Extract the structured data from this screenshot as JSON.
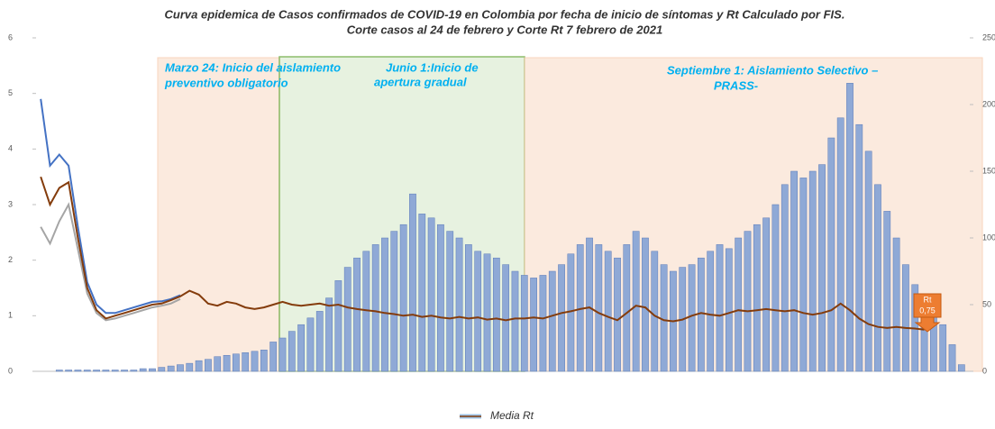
{
  "chart_data": {
    "type": "combo",
    "title": [
      "Curva epidemica de Casos confirmados de COVID-19 en Colombia por fecha de inicio de síntomas y Rt Calculado por FIS.",
      "Corte casos al 24 de febrero  y Corte Rt 7 febrero de 2021"
    ],
    "categories": [
      null,
      null,
      null,
      null,
      null,
      null,
      null,
      null,
      null,
      null,
      null,
      null,
      null,
      null,
      null,
      null,
      null,
      null,
      null,
      null,
      null,
      null,
      null,
      null,
      null,
      null,
      null,
      null,
      null,
      null,
      null,
      null,
      null,
      null,
      null,
      null,
      null,
      null,
      null,
      null,
      null,
      null,
      null,
      null,
      null,
      null,
      null,
      null,
      null,
      null,
      null,
      null,
      null,
      null,
      null,
      null,
      null,
      null,
      null,
      null,
      null,
      null,
      null,
      null,
      null,
      null,
      null,
      null,
      null,
      null,
      null,
      null,
      null,
      null,
      null,
      null,
      null,
      null,
      null,
      null,
      null,
      null,
      null,
      null,
      null,
      null,
      null,
      null,
      null,
      null,
      null,
      null,
      null,
      null,
      null,
      null,
      null,
      null,
      null,
      null
    ],
    "series": [
      {
        "type": "bar",
        "axis": "y2",
        "color": "#8fa9d6",
        "values": [
          0,
          0,
          1,
          1,
          1,
          1,
          1,
          1,
          1,
          1,
          1,
          2,
          2,
          3,
          4,
          5,
          6,
          8,
          9,
          11,
          12,
          13,
          14,
          15,
          16,
          22,
          25,
          30,
          35,
          40,
          45,
          55,
          68,
          78,
          85,
          90,
          95,
          100,
          105,
          110,
          133,
          118,
          115,
          110,
          105,
          100,
          95,
          90,
          88,
          85,
          80,
          75,
          72,
          70,
          72,
          75,
          80,
          88,
          95,
          100,
          95,
          90,
          85,
          95,
          105,
          100,
          90,
          80,
          75,
          78,
          80,
          85,
          90,
          95,
          92,
          100,
          105,
          110,
          115,
          125,
          140,
          150,
          145,
          150,
          155,
          175,
          190,
          216,
          185,
          165,
          140,
          120,
          100,
          80,
          65,
          55,
          45,
          35,
          20,
          5
        ]
      },
      {
        "type": "line",
        "color": "#4472c4",
        "values": [
          4.9,
          3.7,
          3.9,
          3.7,
          2.6,
          1.6,
          1.2,
          1.05,
          1.05,
          1.1,
          1.15,
          1.2,
          1.25,
          1.26,
          1.3,
          1.37,
          null,
          null,
          null,
          null,
          null,
          null,
          null,
          null,
          null,
          null,
          null,
          null,
          null,
          null,
          null,
          null,
          null,
          null,
          null,
          null,
          null,
          null,
          null,
          null,
          null,
          null,
          null,
          null,
          null,
          null,
          null,
          null,
          null,
          null,
          null,
          null,
          null,
          null,
          null,
          null,
          null,
          null,
          null,
          null,
          null,
          null,
          null,
          null,
          null,
          null,
          null,
          null,
          null,
          null,
          null,
          null,
          null,
          null,
          null,
          null,
          null,
          null,
          null,
          null,
          null,
          null,
          null,
          null,
          null,
          null,
          null,
          null,
          null,
          null,
          null,
          null,
          null,
          null,
          null,
          null,
          null,
          null,
          null,
          null
        ]
      },
      {
        "type": "line",
        "color": "#a5a5a5",
        "values": [
          2.6,
          2.3,
          2.7,
          3.0,
          2.2,
          1.4,
          1.05,
          0.92,
          0.95,
          1.0,
          1.05,
          1.1,
          1.15,
          1.18,
          1.22,
          1.3,
          null,
          null,
          null,
          null,
          null,
          null,
          null,
          null,
          null,
          null,
          null,
          null,
          null,
          null,
          null,
          null,
          null,
          null,
          null,
          null,
          null,
          null,
          null,
          null,
          null,
          null,
          null,
          null,
          null,
          null,
          null,
          null,
          null,
          null,
          null,
          null,
          null,
          null,
          null,
          null,
          null,
          null,
          null,
          null,
          null,
          null,
          null,
          null,
          null,
          null,
          null,
          null,
          null,
          null,
          null,
          null,
          null,
          null,
          null,
          null,
          null,
          null,
          null,
          null,
          null,
          null,
          null,
          null,
          null,
          null,
          null,
          null,
          null,
          null,
          null,
          null,
          null,
          null,
          null,
          null,
          null,
          null,
          null,
          null
        ]
      },
      {
        "type": "line",
        "name": "Media Rt",
        "color": "#843c0c",
        "values": [
          3.5,
          3.0,
          3.3,
          3.4,
          2.4,
          1.5,
          1.1,
          0.95,
          1.0,
          1.05,
          1.1,
          1.15,
          1.2,
          1.22,
          1.28,
          1.35,
          1.45,
          1.38,
          1.22,
          1.18,
          1.25,
          1.22,
          1.15,
          1.12,
          1.15,
          1.2,
          1.25,
          1.2,
          1.18,
          1.2,
          1.22,
          1.18,
          1.2,
          1.15,
          1.12,
          1.1,
          1.08,
          1.05,
          1.03,
          1.0,
          1.02,
          0.98,
          1.0,
          0.97,
          0.95,
          0.98,
          0.95,
          0.97,
          0.93,
          0.95,
          0.92,
          0.95,
          0.95,
          0.97,
          0.95,
          1.0,
          1.05,
          1.08,
          1.12,
          1.15,
          1.05,
          0.98,
          0.92,
          1.05,
          1.18,
          1.15,
          1.0,
          0.92,
          0.9,
          0.93,
          1.0,
          1.05,
          1.02,
          1.0,
          1.05,
          1.1,
          1.08,
          1.1,
          1.12,
          1.1,
          1.08,
          1.1,
          1.05,
          1.02,
          1.05,
          1.1,
          1.22,
          1.1,
          0.95,
          0.85,
          0.8,
          0.78,
          0.8,
          0.78,
          0.77,
          0.75,
          null,
          null,
          null,
          null
        ]
      }
    ],
    "ylim": [
      0,
      6
    ],
    "yticks": [
      0,
      1,
      2,
      3,
      4,
      5,
      6
    ],
    "y2lim": [
      0,
      250
    ],
    "y2ticks": [
      0,
      50,
      100,
      150,
      200,
      250
    ],
    "annotations": [
      [
        "Marzo 24: Inicio del aislamiento",
        "preventivo obligatorio"
      ],
      [
        "Junio 1:Inicio de",
        "apertura gradual"
      ],
      [
        "Septiembre 1: Aislamiento Selectivo –",
        "PRASS-"
      ],
      [
        "Rt",
        "0,75"
      ]
    ]
  }
}
